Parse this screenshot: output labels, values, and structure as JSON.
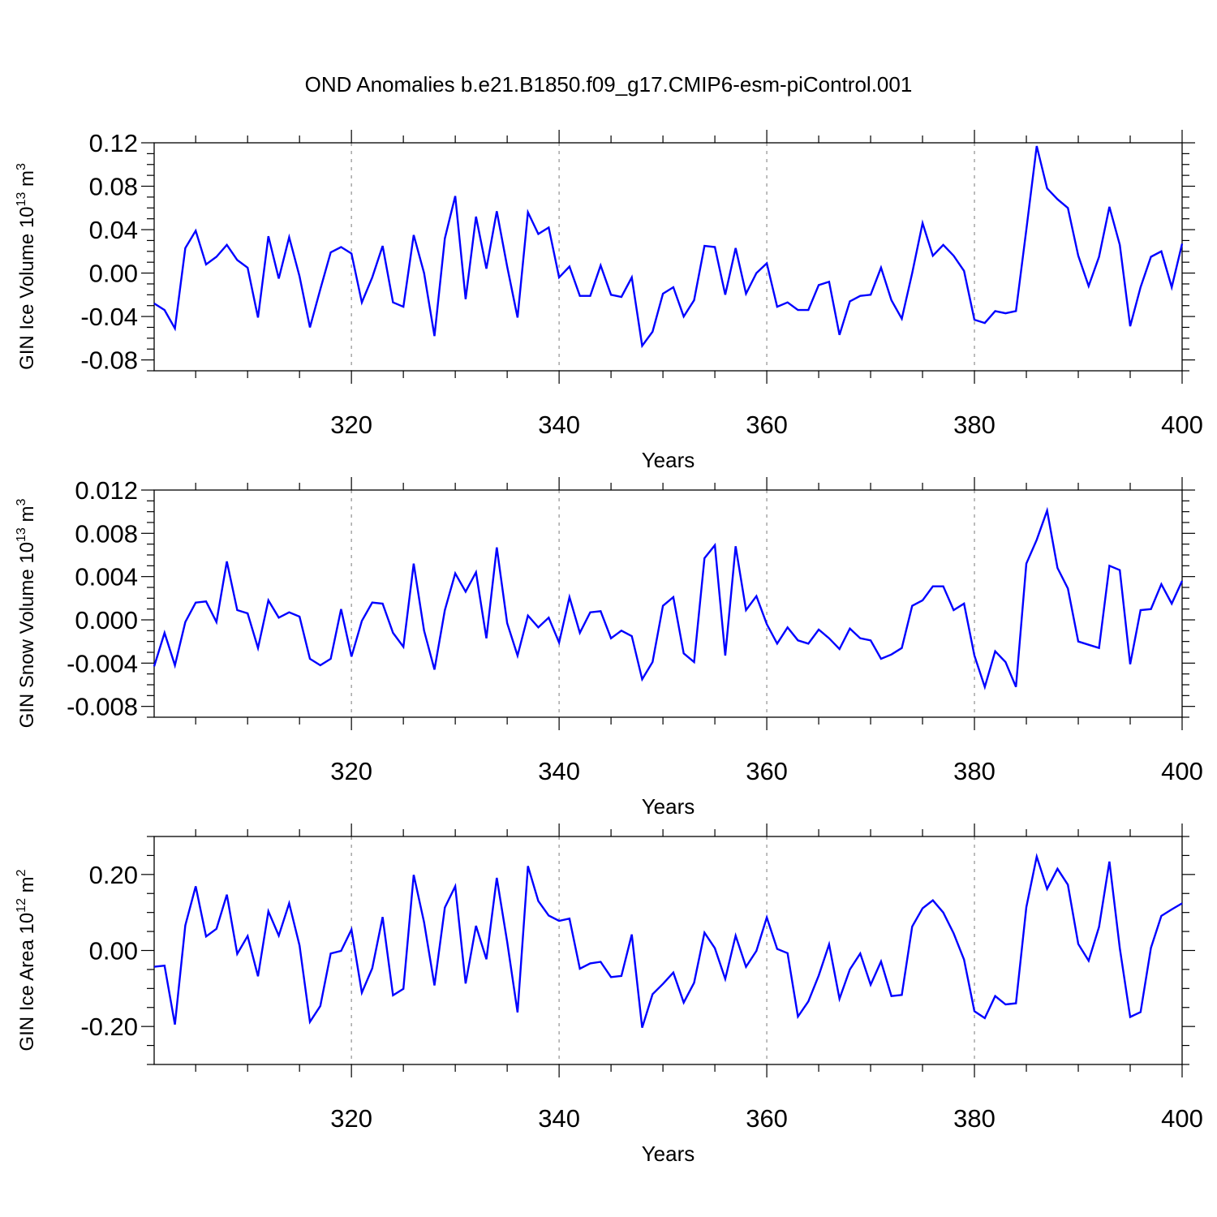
{
  "title": "OND Anomalies b.e21.B1850.f09_g17.CMIP6-esm-piControl.001",
  "colors": {
    "line": "#0000ff",
    "axis": "#000000",
    "grid": "#999999"
  },
  "chart_data": [
    {
      "type": "line",
      "id": "ice_volume",
      "ylabel": "GIN Ice Volume 10",
      "ylabel_exp": "13",
      "ylabel_unit": " m",
      "ylabel_unit_exp": "3",
      "xlabel": "Years",
      "xlim": [
        301,
        400
      ],
      "ylim": [
        -0.09,
        0.12
      ],
      "xticks": [
        320,
        340,
        360,
        380,
        400
      ],
      "xtick_labels": [
        "320",
        "340",
        "360",
        "380",
        "400"
      ],
      "yticks": [
        0.12,
        0.08,
        0.04,
        0.0,
        -0.04,
        -0.08
      ],
      "ytick_labels": [
        "0.12",
        "0.08",
        "0.04",
        "0.00",
        "-0.04",
        "-0.08"
      ],
      "x_start": 301,
      "values": [
        -0.028,
        -0.034,
        -0.051,
        0.023,
        0.039,
        0.008,
        0.015,
        0.026,
        0.012,
        0.005,
        -0.041,
        0.034,
        -0.005,
        0.033,
        -0.003,
        -0.05,
        -0.015,
        0.019,
        0.024,
        0.018,
        -0.027,
        -0.004,
        0.025,
        -0.027,
        -0.031,
        0.035,
        0.0,
        -0.058,
        0.032,
        0.071,
        -0.024,
        0.052,
        0.004,
        0.057,
        0.006,
        -0.041,
        0.056,
        0.036,
        0.042,
        -0.004,
        0.006,
        -0.021,
        -0.021,
        0.007,
        -0.02,
        -0.022,
        -0.004,
        -0.067,
        -0.054,
        -0.019,
        -0.013,
        -0.04,
        -0.025,
        0.025,
        0.024,
        -0.02,
        0.023,
        -0.019,
        0.0,
        0.009,
        -0.031,
        -0.027,
        -0.034,
        -0.034,
        -0.011,
        -0.008,
        -0.057,
        -0.026,
        -0.021,
        -0.02,
        0.005,
        -0.025,
        -0.042,
        0.0,
        0.046,
        0.016,
        0.026,
        0.016,
        0.002,
        -0.043,
        -0.046,
        -0.035,
        -0.037,
        -0.035,
        0.04,
        0.117,
        0.078,
        0.068,
        0.06,
        0.016,
        -0.012,
        0.015,
        0.061,
        0.026,
        -0.049,
        -0.013,
        0.015,
        0.02,
        -0.013,
        0.027
      ]
    },
    {
      "type": "line",
      "id": "snow_volume",
      "ylabel": "GIN Snow Volume 10",
      "ylabel_exp": "13",
      "ylabel_unit": " m",
      "ylabel_unit_exp": "3",
      "xlabel": "Years",
      "xlim": [
        301,
        400
      ],
      "ylim": [
        -0.009,
        0.012
      ],
      "xticks": [
        320,
        340,
        360,
        380,
        400
      ],
      "xtick_labels": [
        "320",
        "340",
        "360",
        "380",
        "400"
      ],
      "yticks": [
        0.012,
        0.008,
        0.004,
        0.0,
        -0.004,
        -0.008
      ],
      "ytick_labels": [
        "0.012",
        "0.008",
        "0.004",
        "0.000",
        "-0.004",
        "-0.008"
      ],
      "x_start": 301,
      "values": [
        -0.0043,
        -0.0012,
        -0.0042,
        -0.0002,
        0.0016,
        0.0017,
        -0.0002,
        0.0054,
        0.0009,
        0.0006,
        -0.0026,
        0.0018,
        0.0002,
        0.0007,
        0.0003,
        -0.0036,
        -0.0042,
        -0.0036,
        0.001,
        -0.0034,
        -0.0001,
        0.0016,
        0.0015,
        -0.0012,
        -0.0025,
        0.0052,
        -0.001,
        -0.0046,
        0.0009,
        0.0043,
        0.0026,
        0.0044,
        -0.0017,
        0.0067,
        -0.0003,
        -0.0033,
        0.0004,
        -0.0007,
        0.0002,
        -0.0021,
        0.0021,
        -0.0012,
        0.0007,
        0.0008,
        -0.0017,
        -0.001,
        -0.0015,
        -0.0055,
        -0.0039,
        0.0013,
        0.0021,
        -0.0031,
        -0.0039,
        0.0057,
        0.0069,
        -0.0033,
        0.0068,
        0.0009,
        0.0022,
        -0.0004,
        -0.0022,
        -0.0007,
        -0.0019,
        -0.0022,
        -0.0009,
        -0.0017,
        -0.0027,
        -0.0008,
        -0.0017,
        -0.0019,
        -0.0036,
        -0.0032,
        -0.0026,
        0.0013,
        0.0018,
        0.0031,
        0.0031,
        0.0009,
        0.0015,
        -0.0033,
        -0.0062,
        -0.0029,
        -0.0039,
        -0.0062,
        0.0052,
        0.0074,
        0.0101,
        0.0048,
        0.0029,
        -0.002,
        -0.0023,
        -0.0026,
        0.005,
        0.0046,
        -0.0041,
        0.0009,
        0.001,
        0.0033,
        0.0015,
        0.0036
      ]
    },
    {
      "type": "line",
      "id": "ice_area",
      "ylabel": "GIN Ice Area 10",
      "ylabel_exp": "12",
      "ylabel_unit": " m",
      "ylabel_unit_exp": "2",
      "xlabel": "Years",
      "xlim": [
        301,
        400
      ],
      "ylim": [
        -0.3,
        0.3
      ],
      "xticks": [
        320,
        340,
        360,
        380,
        400
      ],
      "xtick_labels": [
        "320",
        "340",
        "360",
        "380",
        "400"
      ],
      "yticks": [
        0.2,
        0.0,
        -0.2
      ],
      "ytick_labels": [
        "0.20",
        "0.00",
        "-0.20"
      ],
      "x_start": 301,
      "values": [
        -0.043,
        -0.04,
        -0.195,
        0.066,
        0.169,
        0.037,
        0.057,
        0.147,
        -0.009,
        0.038,
        -0.068,
        0.103,
        0.039,
        0.124,
        0.013,
        -0.188,
        -0.146,
        -0.008,
        -0.001,
        0.055,
        -0.111,
        -0.047,
        0.088,
        -0.118,
        -0.101,
        0.199,
        0.074,
        -0.092,
        0.113,
        0.169,
        -0.087,
        0.065,
        -0.023,
        0.191,
        0.023,
        -0.163,
        0.222,
        0.13,
        0.092,
        0.078,
        0.084,
        -0.048,
        -0.034,
        -0.03,
        -0.07,
        -0.067,
        0.042,
        -0.203,
        -0.115,
        -0.088,
        -0.058,
        -0.137,
        -0.085,
        0.047,
        0.006,
        -0.075,
        0.039,
        -0.043,
        -0.001,
        0.087,
        0.004,
        -0.007,
        -0.174,
        -0.134,
        -0.066,
        0.016,
        -0.127,
        -0.05,
        -0.008,
        -0.09,
        -0.029,
        -0.12,
        -0.117,
        0.063,
        0.111,
        0.132,
        0.1,
        0.045,
        -0.024,
        -0.16,
        -0.178,
        -0.12,
        -0.142,
        -0.139,
        0.114,
        0.247,
        0.162,
        0.215,
        0.173,
        0.017,
        -0.027,
        0.062,
        0.234,
        0.006,
        -0.175,
        -0.162,
        0.007,
        0.091,
        0.108,
        0.124
      ]
    }
  ]
}
